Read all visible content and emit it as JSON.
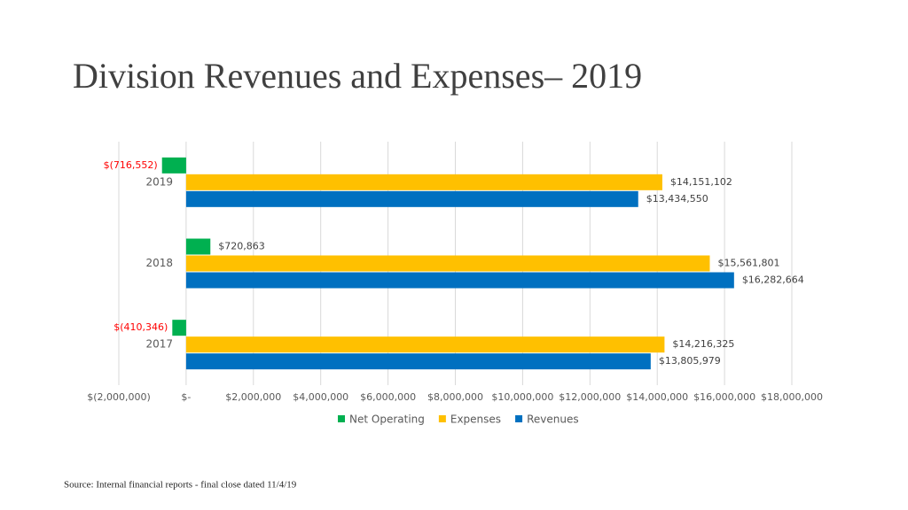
{
  "title": "Division Revenues and Expenses– 2019",
  "source": "Source: Internal financial reports - final close dated 11/4/19",
  "chart_data": {
    "type": "hbar",
    "categories": [
      "2019",
      "2018",
      "2017"
    ],
    "series": [
      {
        "name": "Net Operating",
        "color": "#00b050",
        "values": [
          -716552,
          720863,
          -410346
        ],
        "value_labels": [
          "$(716,552)",
          "$720,863",
          "$(410,346)"
        ]
      },
      {
        "name": "Expenses",
        "color": "#ffc000",
        "values": [
          14151102,
          15561801,
          14216325
        ],
        "value_labels": [
          "$14,151,102",
          "$15,561,801",
          "$14,216,325"
        ]
      },
      {
        "name": "Revenues",
        "color": "#0070c0",
        "values": [
          13434550,
          16282664,
          13805979
        ],
        "value_labels": [
          "$13,434,550",
          "$16,282,664",
          "$13,805,979"
        ]
      }
    ],
    "xlim": [
      -2000000,
      18000000
    ],
    "xticks": [
      {
        "value": -2000000,
        "label": "$(2,000,000)"
      },
      {
        "value": 0,
        "label": "$-"
      },
      {
        "value": 2000000,
        "label": "$2,000,000"
      },
      {
        "value": 4000000,
        "label": "$4,000,000"
      },
      {
        "value": 6000000,
        "label": "$6,000,000"
      },
      {
        "value": 8000000,
        "label": "$8,000,000"
      },
      {
        "value": 10000000,
        "label": "$10,000,000"
      },
      {
        "value": 12000000,
        "label": "$12,000,000"
      },
      {
        "value": 14000000,
        "label": "$14,000,000"
      },
      {
        "value": 16000000,
        "label": "$16,000,000"
      },
      {
        "value": 18000000,
        "label": "$18,000,000"
      }
    ],
    "grid": true,
    "legend": "bottom"
  }
}
